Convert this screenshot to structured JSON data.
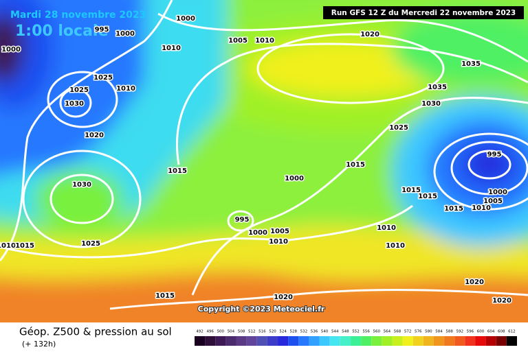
{
  "header": {
    "date": "Mardi 28 novembre 2023",
    "time": "1:00 locale",
    "run": "Run GFS 12 Z du Mercredi 22 novembre 2023"
  },
  "map": {
    "isobar_labels": [
      995,
      1000,
      1000,
      1000,
      1025,
      1025,
      1030,
      1010,
      1010,
      1020,
      1005,
      1010,
      1020,
      1035,
      1035,
      1030,
      1025,
      1015,
      1015,
      995,
      1030,
      1000,
      1015,
      1015,
      1000,
      1005,
      1015,
      1010,
      995,
      1000,
      1005,
      1010,
      1010,
      1010,
      1025,
      1010,
      1015,
      1020,
      1020,
      1015,
      1020
    ]
  },
  "copyright": "Copyright ©2023 Meteociel.fr",
  "footer": {
    "title": "Géop. Z500 & pression au sol",
    "lead": "(+ 132h)"
  },
  "legend": {
    "values": [
      492,
      496,
      500,
      504,
      508,
      512,
      516,
      520,
      524,
      528,
      532,
      536,
      540,
      544,
      548,
      552,
      556,
      560,
      564,
      568,
      572,
      576,
      580,
      584,
      588,
      592,
      596,
      600,
      604,
      608,
      612
    ],
    "colors": [
      "#1a0020",
      "#2d0f3a",
      "#3d1a55",
      "#4b2a6e",
      "#5a3a85",
      "#60459a",
      "#5050b4",
      "#3c3cc8",
      "#2828dc",
      "#1e50f0",
      "#2878ff",
      "#32a0ff",
      "#3cc8ff",
      "#46e6f0",
      "#46f0c8",
      "#3cf096",
      "#50f064",
      "#78f03c",
      "#a0f028",
      "#c8f01e",
      "#f0f01e",
      "#f0d21e",
      "#f0b41e",
      "#f0961e",
      "#f0781e",
      "#f05a1e",
      "#f0321e",
      "#e60a0a",
      "#b40000",
      "#780000",
      "#000000"
    ]
  }
}
